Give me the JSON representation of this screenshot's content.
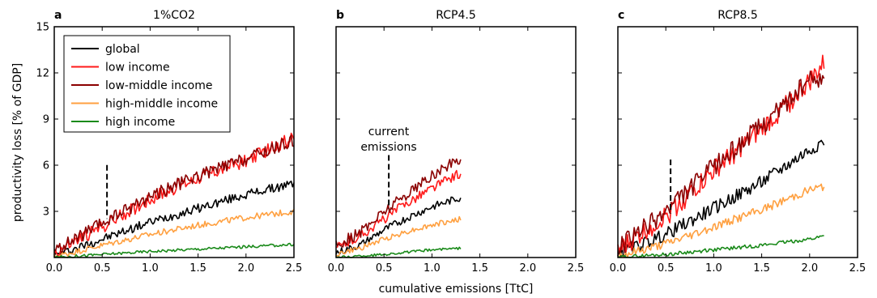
{
  "figure": {
    "ylabel": "productivity loss [% of GDP]",
    "xlabel": "cumulative emissions [TtC]",
    "legend_items": [
      {
        "label": "global",
        "color": "#000000"
      },
      {
        "label": "low income",
        "color": "#ff1a1a"
      },
      {
        "label": "low-middle income",
        "color": "#8b0000"
      },
      {
        "label": "high-middle income",
        "color": "#ffa040"
      },
      {
        "label": "high income",
        "color": "#1a8a1a"
      }
    ],
    "annotation": [
      "current",
      "emissions"
    ],
    "current_emissions_x": 0.55
  },
  "chart_data": [
    {
      "type": "line",
      "panel": "a",
      "title": "1%CO2",
      "xlim": [
        0,
        2.5
      ],
      "ylim": [
        0,
        15
      ],
      "xticks": [
        "0.0",
        "0.5",
        "1.0",
        "1.5",
        "2.0",
        "2.5"
      ],
      "yticks": [
        "3",
        "6",
        "9",
        "12",
        "15"
      ],
      "legend": "top-left",
      "series": [
        {
          "name": "global",
          "color": "#000000",
          "x": [
            0,
            0.5,
            1.0,
            1.5,
            2.0,
            2.5
          ],
          "y": [
            0.1,
            1.2,
            2.3,
            3.2,
            4.1,
            4.8
          ]
        },
        {
          "name": "low income",
          "color": "#ff1a1a",
          "x": [
            0,
            0.5,
            1.0,
            1.5,
            2.0,
            2.5
          ],
          "y": [
            0.3,
            2.0,
            3.8,
            5.2,
            6.3,
            7.8
          ]
        },
        {
          "name": "low-middle income",
          "color": "#8b0000",
          "x": [
            0,
            0.5,
            1.0,
            1.5,
            2.0,
            2.5
          ],
          "y": [
            0.4,
            2.2,
            4.0,
            5.3,
            6.4,
            7.6
          ]
        },
        {
          "name": "high-middle income",
          "color": "#ffa040",
          "x": [
            0,
            0.5,
            1.0,
            1.5,
            2.0,
            2.5
          ],
          "y": [
            0.05,
            0.8,
            1.5,
            2.1,
            2.6,
            3.0
          ]
        },
        {
          "name": "high income",
          "color": "#1a8a1a",
          "x": [
            0,
            0.5,
            1.0,
            1.5,
            2.0,
            2.5
          ],
          "y": [
            0.0,
            0.2,
            0.4,
            0.55,
            0.7,
            0.85
          ]
        }
      ]
    },
    {
      "type": "line",
      "panel": "b",
      "title": "RCP4.5",
      "xlim": [
        0,
        2.5
      ],
      "ylim": [
        0,
        15
      ],
      "xticks": [
        "0.0",
        "0.5",
        "1.0",
        "1.5",
        "2.0",
        "2.5"
      ],
      "series": [
        {
          "name": "global",
          "color": "#000000",
          "x": [
            0,
            0.25,
            0.5,
            0.75,
            1.0,
            1.3
          ],
          "y": [
            0.3,
            0.8,
            1.8,
            2.6,
            3.3,
            3.9
          ]
        },
        {
          "name": "low income",
          "color": "#ff1a1a",
          "x": [
            0,
            0.25,
            0.5,
            0.75,
            1.0,
            1.3
          ],
          "y": [
            0.6,
            1.4,
            2.5,
            3.6,
            4.5,
            5.5
          ]
        },
        {
          "name": "low-middle income",
          "color": "#8b0000",
          "x": [
            0,
            0.25,
            0.5,
            0.75,
            1.0,
            1.3
          ],
          "y": [
            0.8,
            1.6,
            3.0,
            4.2,
            5.3,
            6.5
          ]
        },
        {
          "name": "high-middle income",
          "color": "#ffa040",
          "x": [
            0,
            0.25,
            0.5,
            0.75,
            1.0,
            1.3
          ],
          "y": [
            0.2,
            0.6,
            1.2,
            1.7,
            2.1,
            2.5
          ]
        },
        {
          "name": "high income",
          "color": "#1a8a1a",
          "x": [
            0,
            0.25,
            0.5,
            0.75,
            1.0,
            1.3
          ],
          "y": [
            0.0,
            0.1,
            0.2,
            0.35,
            0.5,
            0.6
          ]
        }
      ]
    },
    {
      "type": "line",
      "panel": "c",
      "title": "RCP8.5",
      "xlim": [
        0,
        2.5
      ],
      "ylim": [
        0,
        15
      ],
      "xticks": [
        "0.0",
        "0.5",
        "1.0",
        "1.5",
        "2.0",
        "2.5"
      ],
      "series": [
        {
          "name": "global",
          "color": "#000000",
          "x": [
            0,
            0.5,
            1.0,
            1.5,
            2.0,
            2.15
          ],
          "y": [
            0.2,
            1.5,
            3.2,
            4.9,
            7.0,
            7.6
          ]
        },
        {
          "name": "low income",
          "color": "#ff1a1a",
          "x": [
            0,
            0.5,
            1.0,
            1.5,
            2.0,
            2.15
          ],
          "y": [
            0.4,
            2.7,
            5.6,
            8.3,
            11.4,
            12.6
          ]
        },
        {
          "name": "low-middle income",
          "color": "#8b0000",
          "x": [
            0,
            0.5,
            1.0,
            1.5,
            2.0,
            2.15
          ],
          "y": [
            0.6,
            3.0,
            5.9,
            8.6,
            11.5,
            11.8
          ]
        },
        {
          "name": "high-middle income",
          "color": "#ffa040",
          "x": [
            0,
            0.5,
            1.0,
            1.5,
            2.0,
            2.15
          ],
          "y": [
            0.1,
            0.9,
            2.0,
            3.1,
            4.4,
            4.6
          ]
        },
        {
          "name": "high income",
          "color": "#1a8a1a",
          "x": [
            0,
            0.5,
            1.0,
            1.5,
            2.0,
            2.15
          ],
          "y": [
            0.0,
            0.2,
            0.5,
            0.8,
            1.2,
            1.4
          ]
        }
      ]
    }
  ]
}
